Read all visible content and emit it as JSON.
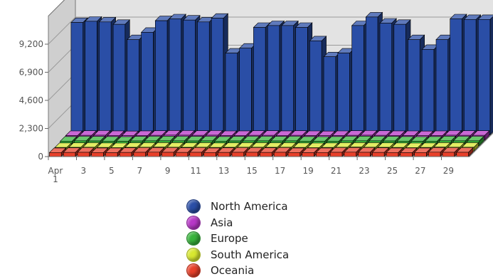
{
  "chart_data": {
    "type": "bar",
    "categories": [
      "Apr 1",
      "2",
      "3",
      "4",
      "5",
      "6",
      "7",
      "8",
      "9",
      "10",
      "11",
      "12",
      "13",
      "14",
      "15",
      "16",
      "17",
      "18",
      "19",
      "20",
      "21",
      "22",
      "23",
      "24",
      "25",
      "26",
      "27",
      "28",
      "29",
      "30"
    ],
    "x_tick_labels": [
      "Apr",
      "1",
      "3",
      "5",
      "7",
      "9",
      "11",
      "13",
      "15",
      "17",
      "19",
      "21",
      "23",
      "25",
      "27",
      "29"
    ],
    "y_ticks": [
      "0",
      "2,300",
      "4,600",
      "6,900",
      "9,200"
    ],
    "ylim": [
      0,
      11500
    ],
    "three_d": true,
    "grid": true,
    "legend_position": "bottom",
    "series": [
      {
        "name": "North America",
        "color": "#2a4ea6",
        "values": [
          9200,
          9300,
          9250,
          9050,
          7800,
          8400,
          9350,
          9500,
          9400,
          9250,
          9550,
          6700,
          7100,
          8800,
          8950,
          8950,
          8800,
          7700,
          6400,
          6700,
          8950,
          9650,
          9150,
          9050,
          7800,
          7000,
          7800,
          9500,
          9450,
          9450
        ]
      },
      {
        "name": "Asia",
        "color": "#b737c7",
        "values": [
          390,
          410,
          420,
          400,
          380,
          400,
          410,
          430,
          420,
          410,
          420,
          390,
          400,
          410,
          410,
          400,
          410,
          390,
          380,
          390,
          410,
          420,
          410,
          400,
          390,
          380,
          390,
          420,
          410,
          410
        ]
      },
      {
        "name": "Europe",
        "color": "#37b33b",
        "values": [
          380,
          400,
          390,
          380,
          370,
          390,
          400,
          410,
          400,
          390,
          400,
          380,
          390,
          400,
          400,
          390,
          400,
          380,
          370,
          380,
          400,
          410,
          400,
          390,
          380,
          370,
          380,
          410,
          400,
          400
        ]
      },
      {
        "name": "South America",
        "color": "#d8e830",
        "values": [
          300,
          310,
          320,
          300,
          290,
          310,
          320,
          330,
          320,
          310,
          320,
          300,
          310,
          320,
          320,
          310,
          320,
          300,
          290,
          300,
          320,
          330,
          320,
          310,
          300,
          290,
          300,
          330,
          320,
          320
        ]
      },
      {
        "name": "Oceania",
        "color": "#e8402a",
        "values": [
          330,
          340,
          350,
          330,
          320,
          340,
          350,
          360,
          350,
          340,
          350,
          330,
          340,
          350,
          350,
          340,
          350,
          330,
          320,
          330,
          350,
          360,
          350,
          340,
          330,
          320,
          330,
          360,
          350,
          350
        ]
      }
    ]
  }
}
